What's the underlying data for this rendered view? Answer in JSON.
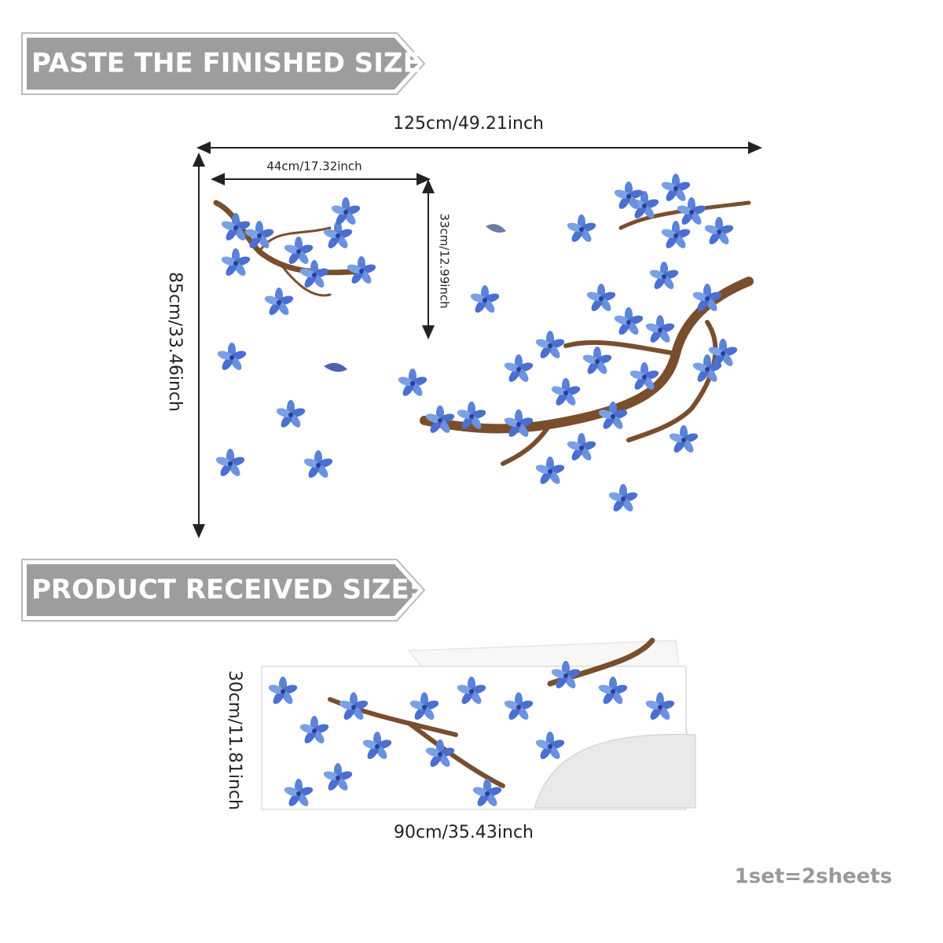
{
  "banners": [
    "PASTE THE FINISHED SIZE:",
    "PRODUCT RECEIVED SIZE:"
  ],
  "finished": {
    "width": "125cm/49.21inch",
    "height": "85cm/33.46inch",
    "branch_width": "44cm/17.32inch",
    "branch_height": "33cm/12.99inch"
  },
  "received": {
    "height": "30cm/11.81inch",
    "width": "90cm/35.43inch"
  },
  "note": "1set=2sheets"
}
